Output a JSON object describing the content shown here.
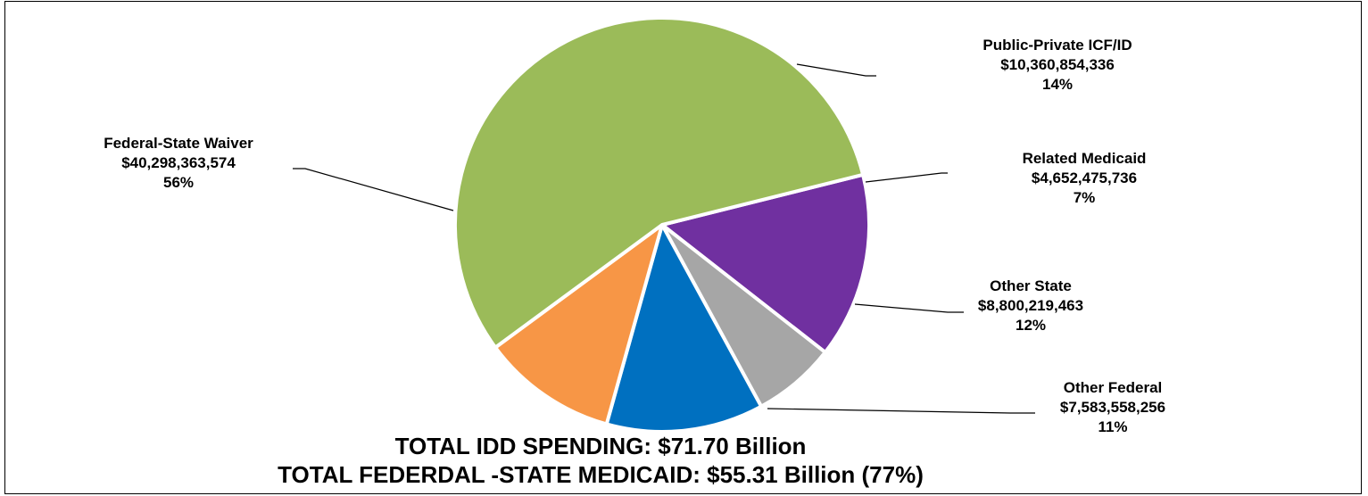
{
  "chart_data": {
    "type": "pie",
    "start_angle_deg": 76,
    "direction": "clockwise",
    "slices": [
      {
        "name": "Public-Private ICF/ID",
        "value_text": "$10,360,854,336",
        "percent_text": "14%",
        "value": 10360854336,
        "color": "#7030A0"
      },
      {
        "name": "Related Medicaid",
        "value_text": "$4,652,475,736",
        "percent_text": "7%",
        "value": 4652475736,
        "color": "#A6A6A6"
      },
      {
        "name": "Other State",
        "value_text": "$8,800,219,463",
        "percent_text": "12%",
        "value": 8800219463,
        "color": "#0070C0"
      },
      {
        "name": "Other Federal",
        "value_text": "$7,583,558,256",
        "percent_text": "11%",
        "value": 7583558256,
        "color": "#F79646"
      },
      {
        "name": "Federal-State Waiver",
        "value_text": "$40,298,363,574",
        "percent_text": "56%",
        "value": 40298363574,
        "color": "#9BBB59"
      }
    ],
    "totals": {
      "line1": "TOTAL IDD SPENDING: $71.70 Billion",
      "line2": "TOTAL FEDERDAL -STATE MEDICAID: $55.31 Billion (77%)"
    }
  }
}
